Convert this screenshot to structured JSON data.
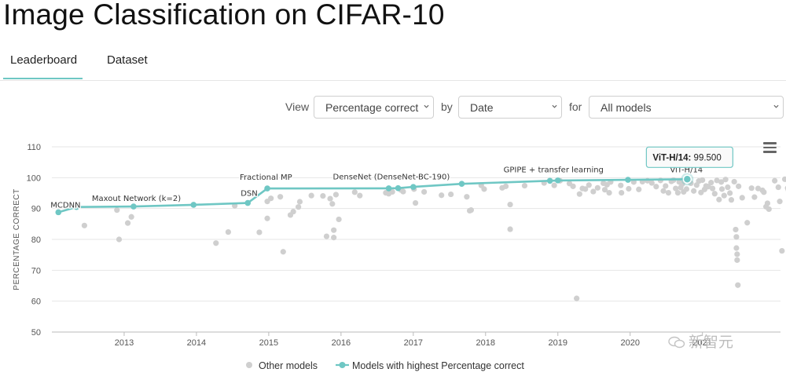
{
  "page": {
    "title": "Image Classification on CIFAR-10"
  },
  "tabs": [
    {
      "label": "Leaderboard",
      "active": true
    },
    {
      "label": "Dataset",
      "active": false
    }
  ],
  "controls": {
    "view_label": "View",
    "view_value": "Percentage correct",
    "by_label": "by",
    "by_value": "Date",
    "for_label": "for",
    "for_value": "All models"
  },
  "watermark": {
    "text": "新智元"
  },
  "colors": {
    "accent": "#6fc7c4",
    "other_models": "#cfcfcf",
    "axis_text": "#555555",
    "grid": "#e6e6e6"
  },
  "icons": {
    "menu": "hamburger-menu-icon",
    "chevron": "chevron-down-icon",
    "watermark": "wechat-icon"
  },
  "chart_data": {
    "type": "scatter",
    "ylabel": "PERCENTAGE CORRECT",
    "ylim": [
      50,
      110
    ],
    "yticks": [
      50,
      60,
      70,
      80,
      90,
      100,
      110
    ],
    "xticks": [
      "2013",
      "2014",
      "2015",
      "2016",
      "2017",
      "2018",
      "2019",
      "2020",
      "2021"
    ],
    "xlim": [
      2012.0,
      2022.08
    ],
    "grid": true,
    "legend": {
      "position": "bottom",
      "items": [
        "Other models",
        "Models with highest Percentage correct"
      ]
    },
    "tooltip": {
      "label": "ViT-H/14:",
      "value": "99.500"
    },
    "series": [
      {
        "name": "Models with highest Percentage correct",
        "kind": "line",
        "points": [
          {
            "x": 2012.09,
            "y": 88.8,
            "label": "MCDNN"
          },
          {
            "x": 2012.34,
            "y": 90.5,
            "label": ""
          },
          {
            "x": 2013.13,
            "y": 90.65,
            "label": "Maxout Network (k=2)"
          },
          {
            "x": 2013.96,
            "y": 91.2,
            "label": ""
          },
          {
            "x": 2014.71,
            "y": 91.8,
            "label": "DSN"
          },
          {
            "x": 2014.98,
            "y": 96.5,
            "label": "Fractional MP"
          },
          {
            "x": 2016.66,
            "y": 96.55,
            "label": ""
          },
          {
            "x": 2016.79,
            "y": 96.6,
            "label": "DenseNet (DenseNet-BC-190)"
          },
          {
            "x": 2017.0,
            "y": 97.0,
            "label": ""
          },
          {
            "x": 2017.67,
            "y": 98.0,
            "label": ""
          },
          {
            "x": 2018.89,
            "y": 99.0,
            "label": "GPIPE + transfer learning"
          },
          {
            "x": 2019.0,
            "y": 99.1,
            "label": ""
          },
          {
            "x": 2019.97,
            "y": 99.3,
            "label": ""
          },
          {
            "x": 2020.79,
            "y": 99.5,
            "label": "ViT-H/14"
          }
        ]
      },
      {
        "name": "Other models",
        "kind": "scatter",
        "points": [
          [
            2012.45,
            84.5
          ],
          [
            2012.9,
            89.5
          ],
          [
            2012.93,
            80
          ],
          [
            2013.05,
            85.3
          ],
          [
            2013.1,
            87.3
          ],
          [
            2014.27,
            78.8
          ],
          [
            2014.44,
            82.4
          ],
          [
            2014.53,
            90.9
          ],
          [
            2014.87,
            82.3
          ],
          [
            2014.98,
            86.8
          ],
          [
            2014.98,
            92.3
          ],
          [
            2015.03,
            93.3
          ],
          [
            2015.16,
            93.8
          ],
          [
            2015.2,
            76
          ],
          [
            2015.3,
            87.9
          ],
          [
            2015.34,
            89
          ],
          [
            2015.41,
            90.5
          ],
          [
            2015.43,
            92.2
          ],
          [
            2015.59,
            94.2
          ],
          [
            2015.75,
            94.1
          ],
          [
            2015.8,
            81
          ],
          [
            2015.85,
            93.2
          ],
          [
            2015.88,
            91.5
          ],
          [
            2015.9,
            83
          ],
          [
            2015.9,
            80.6
          ],
          [
            2015.93,
            94.5
          ],
          [
            2015.97,
            86.5
          ],
          [
            2016.19,
            95.3
          ],
          [
            2016.26,
            94.2
          ],
          [
            2016.62,
            95.1
          ],
          [
            2016.66,
            94.8
          ],
          [
            2016.71,
            95.4
          ],
          [
            2016.83,
            96
          ],
          [
            2016.86,
            95.5
          ],
          [
            2017.01,
            96.3
          ],
          [
            2017.03,
            91.8
          ],
          [
            2017.15,
            95.4
          ],
          [
            2017.39,
            94.3
          ],
          [
            2017.52,
            94.6
          ],
          [
            2017.74,
            93.8
          ],
          [
            2017.78,
            89.3
          ],
          [
            2017.8,
            89.5
          ],
          [
            2017.94,
            97.5
          ],
          [
            2017.98,
            96.3
          ],
          [
            2018.23,
            96.7
          ],
          [
            2018.28,
            97.2
          ],
          [
            2018.34,
            91.3
          ],
          [
            2018.34,
            83.3
          ],
          [
            2018.54,
            97.4
          ],
          [
            2018.81,
            98.3
          ],
          [
            2018.95,
            97.5
          ],
          [
            2019.03,
            99
          ],
          [
            2019.16,
            98.1
          ],
          [
            2019.21,
            97.2
          ],
          [
            2019.26,
            60.9
          ],
          [
            2019.3,
            94.7
          ],
          [
            2019.34,
            96.5
          ],
          [
            2019.38,
            96.3
          ],
          [
            2019.43,
            97.6
          ],
          [
            2019.49,
            95.5
          ],
          [
            2019.55,
            96.7
          ],
          [
            2019.63,
            98.2
          ],
          [
            2019.65,
            96.1
          ],
          [
            2019.68,
            97.7
          ],
          [
            2019.71,
            95.1
          ],
          [
            2019.73,
            98.6
          ],
          [
            2019.87,
            97.5
          ],
          [
            2019.88,
            95.1
          ],
          [
            2019.98,
            96.4
          ],
          [
            2020.05,
            98.6
          ],
          [
            2020.12,
            96.2
          ],
          [
            2020.17,
            98.7
          ],
          [
            2020.24,
            99
          ],
          [
            2020.3,
            98.3
          ],
          [
            2020.36,
            97.1
          ],
          [
            2020.42,
            99.1
          ],
          [
            2020.46,
            95.7
          ],
          [
            2020.49,
            97.3
          ],
          [
            2020.53,
            95.1
          ],
          [
            2020.57,
            98.8
          ],
          [
            2020.6,
            99.2
          ],
          [
            2020.63,
            96.5
          ],
          [
            2020.66,
            95.1
          ],
          [
            2020.68,
            98.6
          ],
          [
            2020.7,
            96.8
          ],
          [
            2020.72,
            97.9
          ],
          [
            2020.74,
            95.4
          ],
          [
            2020.76,
            99
          ],
          [
            2020.78,
            96.3
          ],
          [
            2020.84,
            98.2
          ],
          [
            2020.88,
            95.7
          ],
          [
            2020.92,
            97.6
          ],
          [
            2020.95,
            98.9
          ],
          [
            2020.98,
            95.2
          ],
          [
            2021.0,
            99.2
          ],
          [
            2021.03,
            96.2
          ],
          [
            2021.05,
            97.3
          ],
          [
            2021.08,
            97.1
          ],
          [
            2021.12,
            98.4
          ],
          [
            2021.14,
            96.5
          ],
          [
            2021.17,
            94.8
          ],
          [
            2021.2,
            99.1
          ],
          [
            2021.23,
            92.9
          ],
          [
            2021.26,
            98.6
          ],
          [
            2021.27,
            96.3
          ],
          [
            2021.3,
            94.2
          ],
          [
            2021.32,
            99.4
          ],
          [
            2021.35,
            96.9
          ],
          [
            2021.38,
            95
          ],
          [
            2021.4,
            92.8
          ],
          [
            2021.44,
            98.7
          ],
          [
            2021.46,
            83.2
          ],
          [
            2021.47,
            80.8
          ],
          [
            2021.47,
            77.2
          ],
          [
            2021.48,
            75.2
          ],
          [
            2021.48,
            73.3
          ],
          [
            2021.49,
            65.2
          ],
          [
            2021.5,
            97.2
          ],
          [
            2021.55,
            93.5
          ],
          [
            2021.62,
            85.4
          ],
          [
            2021.68,
            96.6
          ],
          [
            2021.72,
            93.7
          ],
          [
            2021.77,
            96.5
          ],
          [
            2021.83,
            95.9
          ],
          [
            2021.85,
            95.3
          ],
          [
            2021.88,
            90.6
          ],
          [
            2021.9,
            91.7
          ],
          [
            2021.92,
            89.8
          ],
          [
            2022.0,
            99
          ],
          [
            2022.05,
            96.9
          ],
          [
            2022.07,
            92.3
          ],
          [
            2022.1,
            76.3
          ],
          [
            2022.14,
            99.5
          ],
          [
            2022.18,
            96.6
          ],
          [
            2022.19,
            96
          ],
          [
            2022.24,
            73.7
          ],
          [
            2022.31,
            95.6
          ],
          [
            2022.36,
            91.6
          ],
          [
            2022.47,
            97.2
          ],
          [
            2022.5,
            85.5
          ]
        ]
      }
    ]
  }
}
